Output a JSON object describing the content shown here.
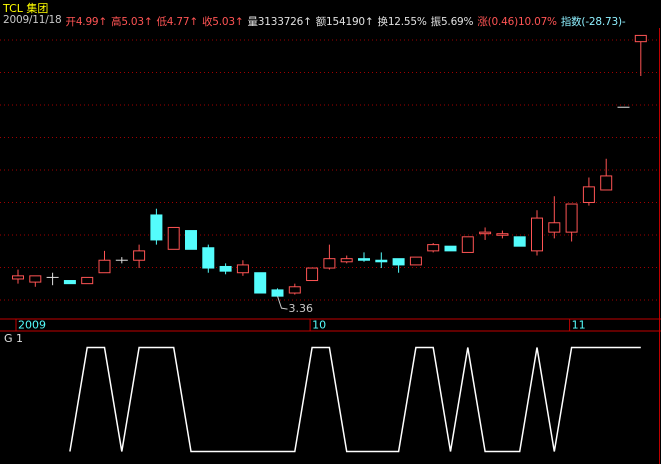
{
  "header": {
    "name": "TCL 集团",
    "items": [
      {
        "text": "2009/11/18",
        "color": "#c8c8c8"
      },
      {
        "text": "开4.99↑",
        "color": "#ff5454"
      },
      {
        "text": "高5.03↑",
        "color": "#ff5454"
      },
      {
        "text": "低4.77↑",
        "color": "#ff5454"
      },
      {
        "text": "收5.03↑",
        "color": "#ff5454"
      },
      {
        "text": "量3133726↑",
        "color": "#e0e0e0"
      },
      {
        "text": "额154190↑",
        "color": "#e0e0e0"
      },
      {
        "text": "换12.55%",
        "color": "#e0e0e0"
      },
      {
        "text": "振5.69%",
        "color": "#e0e0e0"
      },
      {
        "text": "涨(0.46)10.07%",
        "color": "#ff5454"
      },
      {
        "text": "指数(-28.73)-",
        "color": "#8ff0ff"
      }
    ]
  },
  "chart_data": [
    {
      "type": "candlestick",
      "categories": [
        "2009",
        null,
        null,
        null,
        null,
        null,
        null,
        null,
        null,
        null,
        null,
        null,
        null,
        null,
        null,
        null,
        null,
        "10",
        null,
        null,
        null,
        null,
        null,
        null,
        null,
        null,
        null,
        null,
        null,
        null,
        null,
        null,
        "11",
        null,
        null,
        null,
        null
      ],
      "open": [
        3.47,
        3.45,
        3.48,
        3.46,
        3.44,
        3.51,
        3.59,
        3.59,
        3.88,
        3.66,
        3.78,
        3.67,
        3.55,
        3.51,
        3.51,
        3.4,
        3.38,
        3.46,
        3.54,
        3.58,
        3.6,
        3.59,
        3.6,
        3.56,
        3.65,
        3.68,
        3.64,
        3.76,
        3.75,
        3.74,
        3.65,
        3.77,
        3.77,
        3.96,
        4.04,
        4.57,
        4.99
      ],
      "high": [
        3.53,
        3.49,
        3.51,
        3.46,
        3.48,
        3.65,
        3.61,
        3.69,
        3.92,
        3.8,
        3.78,
        3.69,
        3.57,
        3.59,
        3.51,
        3.41,
        3.44,
        3.54,
        3.69,
        3.62,
        3.64,
        3.64,
        3.6,
        3.61,
        3.7,
        3.68,
        3.74,
        3.8,
        3.78,
        3.74,
        3.91,
        4.0,
        3.95,
        4.12,
        4.24,
        4.57,
        5.03
      ],
      "low": [
        3.44,
        3.42,
        3.43,
        3.44,
        3.44,
        3.51,
        3.57,
        3.54,
        3.69,
        3.66,
        3.66,
        3.51,
        3.5,
        3.49,
        3.38,
        3.36,
        3.37,
        3.46,
        3.53,
        3.57,
        3.58,
        3.54,
        3.51,
        3.56,
        3.64,
        3.65,
        3.64,
        3.72,
        3.73,
        3.68,
        3.62,
        3.73,
        3.71,
        3.94,
        4.04,
        4.57,
        4.77
      ],
      "close": [
        3.49,
        3.49,
        3.48,
        3.44,
        3.48,
        3.59,
        3.59,
        3.65,
        3.72,
        3.8,
        3.66,
        3.54,
        3.52,
        3.56,
        3.38,
        3.36,
        3.42,
        3.54,
        3.6,
        3.6,
        3.59,
        3.58,
        3.56,
        3.61,
        3.69,
        3.65,
        3.74,
        3.77,
        3.76,
        3.68,
        3.86,
        3.83,
        3.95,
        4.06,
        4.13,
        4.57,
        5.03
      ],
      "up_color": "#ff5454",
      "down_color": "#54fcfc",
      "flat_color": "#e0e0e0",
      "ylim": [
        3.22,
        5.18
      ],
      "grid": true
    },
    {
      "type": "line",
      "title": "G 1",
      "color": "#ffffff",
      "values": [
        null,
        null,
        null,
        0,
        1,
        1,
        0,
        1,
        1,
        1,
        0,
        0,
        0,
        0,
        0,
        0,
        0,
        1,
        1,
        0,
        0,
        0,
        0,
        1,
        1,
        0,
        1,
        0,
        0,
        0,
        1,
        0,
        1,
        1,
        1,
        1,
        1
      ],
      "ylim": [
        -0.12,
        1.14
      ]
    }
  ]
}
